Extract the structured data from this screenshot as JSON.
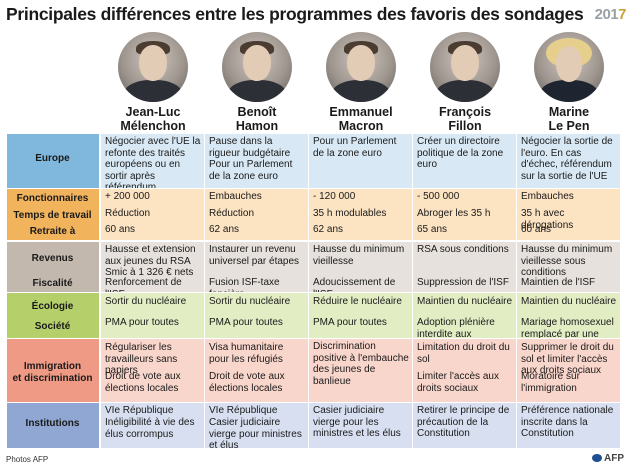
{
  "title": "Principales différences entre les programmes des favoris des sondages",
  "year_mark": {
    "prefix": "201",
    "suffix": "7"
  },
  "candidates": [
    {
      "first": "Jean-Luc",
      "last": "Mélenchon"
    },
    {
      "first": "Benoît",
      "last": "Hamon"
    },
    {
      "first": "Emmanuel",
      "last": "Macron"
    },
    {
      "first": "François",
      "last": "Fillon"
    },
    {
      "first": "Marine",
      "last": "Le Pen"
    }
  ],
  "rows": [
    {
      "labels": [
        "Europe"
      ],
      "cells": [
        [
          "Négocier avec l'UE la refonte des traités européens ou en sortir après référendum"
        ],
        [
          "Pause dans la rigueur budgétaire",
          "Pour un Parlement de la zone euro"
        ],
        [
          "Pour un Parlement de la zone euro"
        ],
        [
          "Créer un directoire politique de la zone euro"
        ],
        [
          "Négocier la sortie de l'euro. En cas d'échec, référendum sur la sortie de l'UE"
        ]
      ]
    },
    {
      "labels": [
        "Fonctionnaires",
        "Temps de travail",
        "Retraite à"
      ],
      "cells": [
        [
          "+ 200 000",
          "Réduction",
          "60 ans"
        ],
        [
          "Embauches",
          "Réduction",
          "62 ans"
        ],
        [
          "- 120 000",
          "35 h modulables",
          "62 ans"
        ],
        [
          "- 500 000",
          "Abroger les 35 h",
          "65 ans"
        ],
        [
          "Embauches",
          "35 h avec dérogations",
          "60 ans"
        ]
      ]
    },
    {
      "labels": [
        "Revenus",
        "Fiscalité"
      ],
      "cells": [
        [
          "Hausse et extension aux jeunes du RSA Smic à 1 326 € nets",
          "Renforcement de l'ISF"
        ],
        [
          "Instaurer un revenu universel par étapes",
          "Fusion ISF-taxe foncière"
        ],
        [
          "Hausse du minimum vieillesse",
          "Adoucissement de l'ISF"
        ],
        [
          "RSA sous conditions",
          "Suppression de l'ISF"
        ],
        [
          "Hausse du minimum vieillesse sous conditions",
          "Maintien de l'ISF"
        ]
      ]
    },
    {
      "labels": [
        "Écologie",
        "Société"
      ],
      "cells": [
        [
          "Sortir du nucléaire",
          "PMA pour toutes"
        ],
        [
          "Sortir du nucléaire",
          "PMA pour toutes"
        ],
        [
          "Réduire le nucléaire",
          "PMA pour toutes"
        ],
        [
          "Maintien du nucléaire",
          "Adoption plénière interdite aux homosexuels"
        ],
        [
          "Maintien du nucléaire",
          "Mariage homosexuel remplacé par une union civile"
        ]
      ]
    },
    {
      "labels": [
        "Immigration",
        "et discrimination"
      ],
      "cells": [
        [
          "Régulariser les travailleurs sans papiers",
          "Droit de vote aux élections locales"
        ],
        [
          "Visa humanitaire pour les réfugiés",
          "Droit de vote aux élections locales"
        ],
        [
          "Discrimination positive à l'embauche des jeunes de banlieue"
        ],
        [
          "Limitation du droit du sol",
          "Limiter l'accès aux droits sociaux"
        ],
        [
          "Supprimer le droit du sol et limiter l'accès aux droits sociaux",
          "Moratoire sur l'immigration"
        ]
      ]
    },
    {
      "labels": [
        "Institutions"
      ],
      "cells": [
        [
          "VIe République",
          "Inéligibilité à vie des élus corrompus"
        ],
        [
          "VIe République",
          "Casier judiciaire vierge pour ministres et élus"
        ],
        [
          "Casier judiciaire vierge pour les ministres et les élus"
        ],
        [
          "Retirer le principe de précaution de la Constitution"
        ],
        [
          "Préférence nationale inscrite dans la Constitution"
        ]
      ]
    }
  ],
  "credits": {
    "photos": "Photos AFP",
    "agency": "AFP"
  },
  "colors": {
    "europe_label": "#7fb8dc",
    "europe_fill": "#d8e9f5",
    "work_label": "#f2b35d",
    "work_fill": "#fce3c2",
    "income_label": "#c2b8ae",
    "income_fill": "#e6e1dc",
    "ecology_label": "#b5cf6a",
    "ecology_fill": "#e2edc4",
    "immigration_label": "#ee9a85",
    "immigration_fill": "#f9d6cc",
    "institutions_label": "#8fa7d2",
    "institutions_fill": "#d7dff0"
  }
}
